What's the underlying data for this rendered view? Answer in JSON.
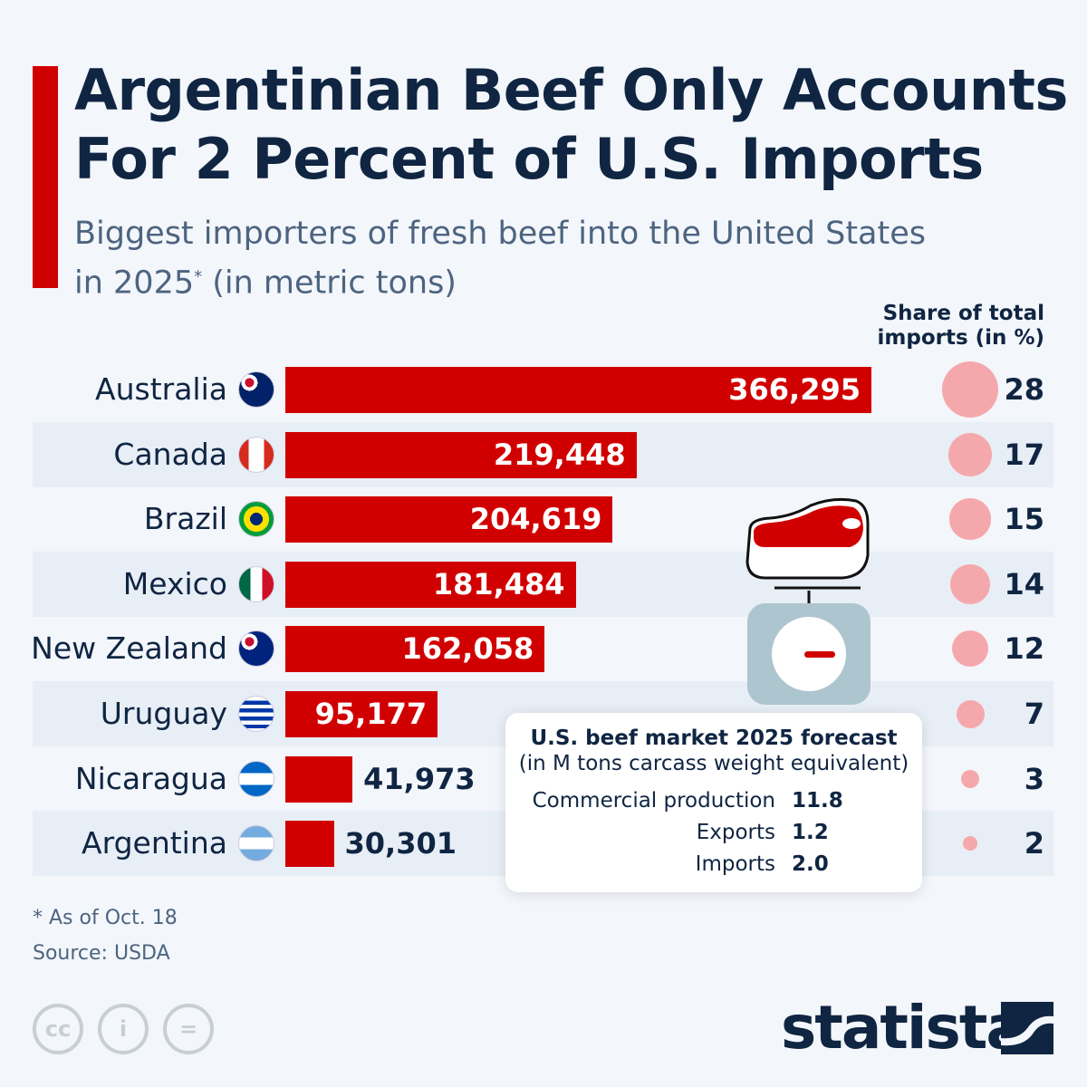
{
  "title_line1": "Argentinian Beef Only Accounts",
  "title_line2": "For 2 Percent of U.S. Imports",
  "subtitle_line1": "Biggest importers of fresh beef into the United States",
  "subtitle_line2a": "in 2025",
  "subtitle_sup": "*",
  "subtitle_line2b": " (in metric tons)",
  "share_header_line1": "Share of total",
  "share_header_line2": "imports (in %)",
  "colors": {
    "bar": "#d10000",
    "bubble": "#f5a8ac",
    "text": "#0f2542"
  },
  "chart_data": {
    "type": "bar",
    "orientation": "horizontal",
    "categories": [
      "Australia",
      "Canada",
      "Brazil",
      "Mexico",
      "New Zealand",
      "Uruguay",
      "Nicaragua",
      "Argentina"
    ],
    "values": [
      366295,
      219448,
      204619,
      181484,
      162058,
      95177,
      41973,
      30301
    ],
    "value_labels": [
      "366,295",
      "219,448",
      "204,619",
      "181,484",
      "162,058",
      "95,177",
      "41,973",
      "30,301"
    ],
    "share_percent": [
      28,
      17,
      15,
      14,
      12,
      7,
      3,
      2
    ],
    "unit": "metric tons"
  },
  "forecast": {
    "title": "U.S. beef market 2025 forecast",
    "subtitle": "(in M tons carcass weight equivalent)",
    "rows": [
      {
        "label": "Commercial production",
        "value": "11.8"
      },
      {
        "label": "Exports",
        "value": "1.2"
      },
      {
        "label": "Imports",
        "value": "2.0"
      }
    ]
  },
  "footnote": "* As of Oct. 18",
  "source": "Source: USDA",
  "brand": "statista",
  "license_icons": [
    "cc-icon",
    "attribution-icon",
    "no-derivatives-icon"
  ]
}
